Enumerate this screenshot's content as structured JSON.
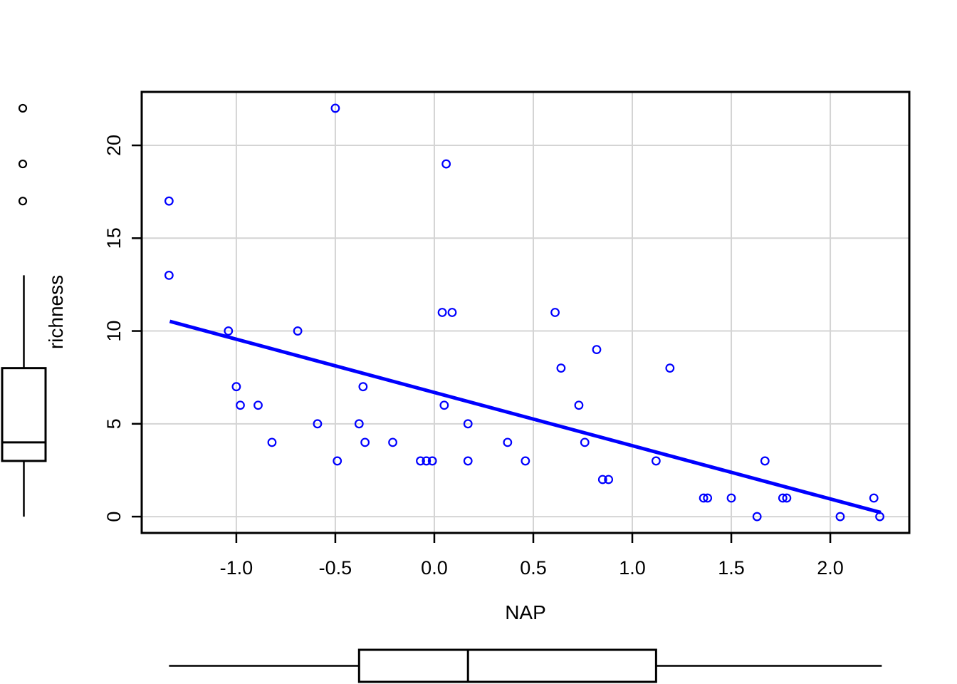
{
  "chart_data": {
    "type": "scatter",
    "title": "",
    "xlabel": "NAP",
    "ylabel": "richness",
    "xlim": [
      -1.478,
      2.399
    ],
    "ylim": [
      -0.88,
      22.88
    ],
    "grid": true,
    "legend": "none",
    "x_ticks": [
      -1.0,
      -0.5,
      0.0,
      0.5,
      1.0,
      1.5,
      2.0
    ],
    "x_tick_labels": [
      "-1.0",
      "-0.5",
      "0.0",
      "0.5",
      "1.0",
      "1.5",
      "2.0"
    ],
    "y_ticks": [
      0,
      5,
      10,
      15,
      20
    ],
    "y_tick_labels": [
      "0",
      "5",
      "10",
      "15",
      "20"
    ],
    "points": [
      [
        -1.34,
        17
      ],
      [
        -1.34,
        13
      ],
      [
        -1.04,
        10
      ],
      [
        -1.0,
        7
      ],
      [
        -0.98,
        6
      ],
      [
        -0.89,
        6
      ],
      [
        -0.82,
        4
      ],
      [
        -0.69,
        10
      ],
      [
        -0.59,
        5
      ],
      [
        -0.5,
        22
      ],
      [
        -0.49,
        3
      ],
      [
        -0.38,
        5
      ],
      [
        -0.36,
        7
      ],
      [
        -0.35,
        4
      ],
      [
        -0.21,
        4
      ],
      [
        -0.07,
        3
      ],
      [
        -0.04,
        3
      ],
      [
        -0.01,
        3
      ],
      [
        0.04,
        11
      ],
      [
        0.05,
        6
      ],
      [
        0.06,
        19
      ],
      [
        0.09,
        11
      ],
      [
        0.17,
        5
      ],
      [
        0.17,
        3
      ],
      [
        0.37,
        4
      ],
      [
        0.46,
        3
      ],
      [
        0.61,
        11
      ],
      [
        0.64,
        8
      ],
      [
        0.73,
        6
      ],
      [
        0.76,
        4
      ],
      [
        0.82,
        9
      ],
      [
        0.85,
        2
      ],
      [
        0.88,
        2
      ],
      [
        1.12,
        3
      ],
      [
        1.19,
        8
      ],
      [
        1.36,
        1
      ],
      [
        1.38,
        1
      ],
      [
        1.5,
        1
      ],
      [
        1.63,
        0
      ],
      [
        1.67,
        3
      ],
      [
        1.76,
        1
      ],
      [
        1.78,
        1
      ],
      [
        2.05,
        0
      ],
      [
        2.22,
        1
      ],
      [
        2.25,
        0
      ]
    ],
    "fit_line": {
      "x1": -1.336,
      "y1": 10.52,
      "x2": 2.255,
      "y2": 0.22,
      "slope": -2.867,
      "intercept": 6.686
    },
    "marginal_boxplot_x": {
      "axis": "NAP",
      "min": -1.34,
      "q1": -0.38,
      "median": 0.17,
      "q3": 1.12,
      "max": 2.26,
      "outliers": []
    },
    "marginal_boxplot_y": {
      "axis": "richness",
      "min": 0,
      "q1": 3,
      "median": 4,
      "q3": 8,
      "max": 13,
      "outliers": [
        17,
        19,
        22
      ]
    },
    "colors": {
      "point": "#0000FF",
      "fit_line": "#0000FF",
      "grid": "#D4D4D4",
      "axis": "#000000",
      "boxplot": "#000000"
    }
  }
}
